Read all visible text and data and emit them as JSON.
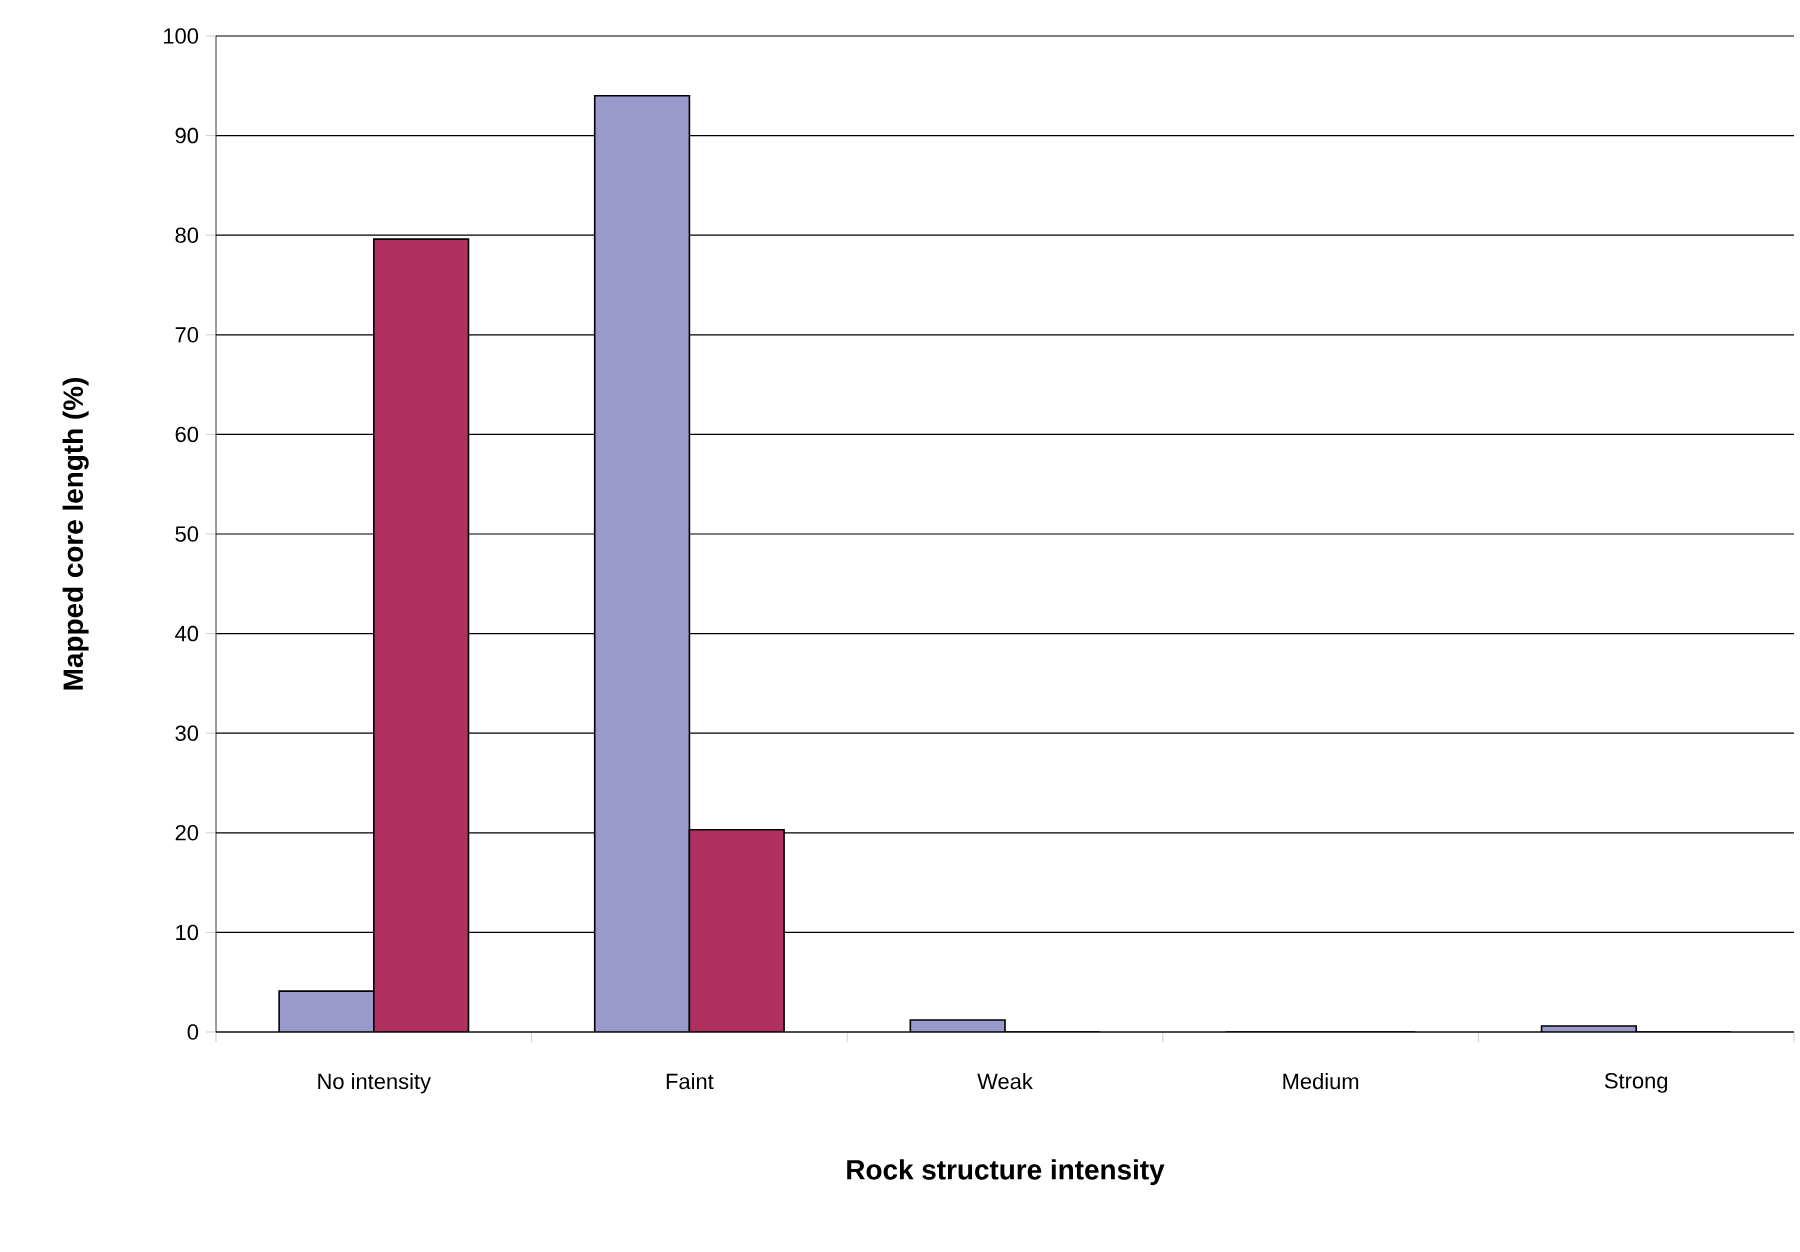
{
  "chart_data": {
    "type": "bar",
    "xlabel": "Rock structure intensity",
    "ylabel": "Mapped core length (%)",
    "categories": [
      "No intensity",
      "Faint",
      "Weak",
      "Medium",
      "Strong"
    ],
    "series": [
      {
        "color": "#9999cc",
        "values": [
          4.1,
          94,
          1.2,
          0,
          0.6
        ]
      },
      {
        "color": "#b03060",
        "values": [
          79.6,
          20.3,
          0,
          0,
          0
        ]
      }
    ],
    "ylim": [
      0,
      100
    ],
    "yticks": [
      0,
      10,
      20,
      30,
      40,
      50,
      60,
      70,
      80,
      90,
      100
    ],
    "grid": "y"
  }
}
